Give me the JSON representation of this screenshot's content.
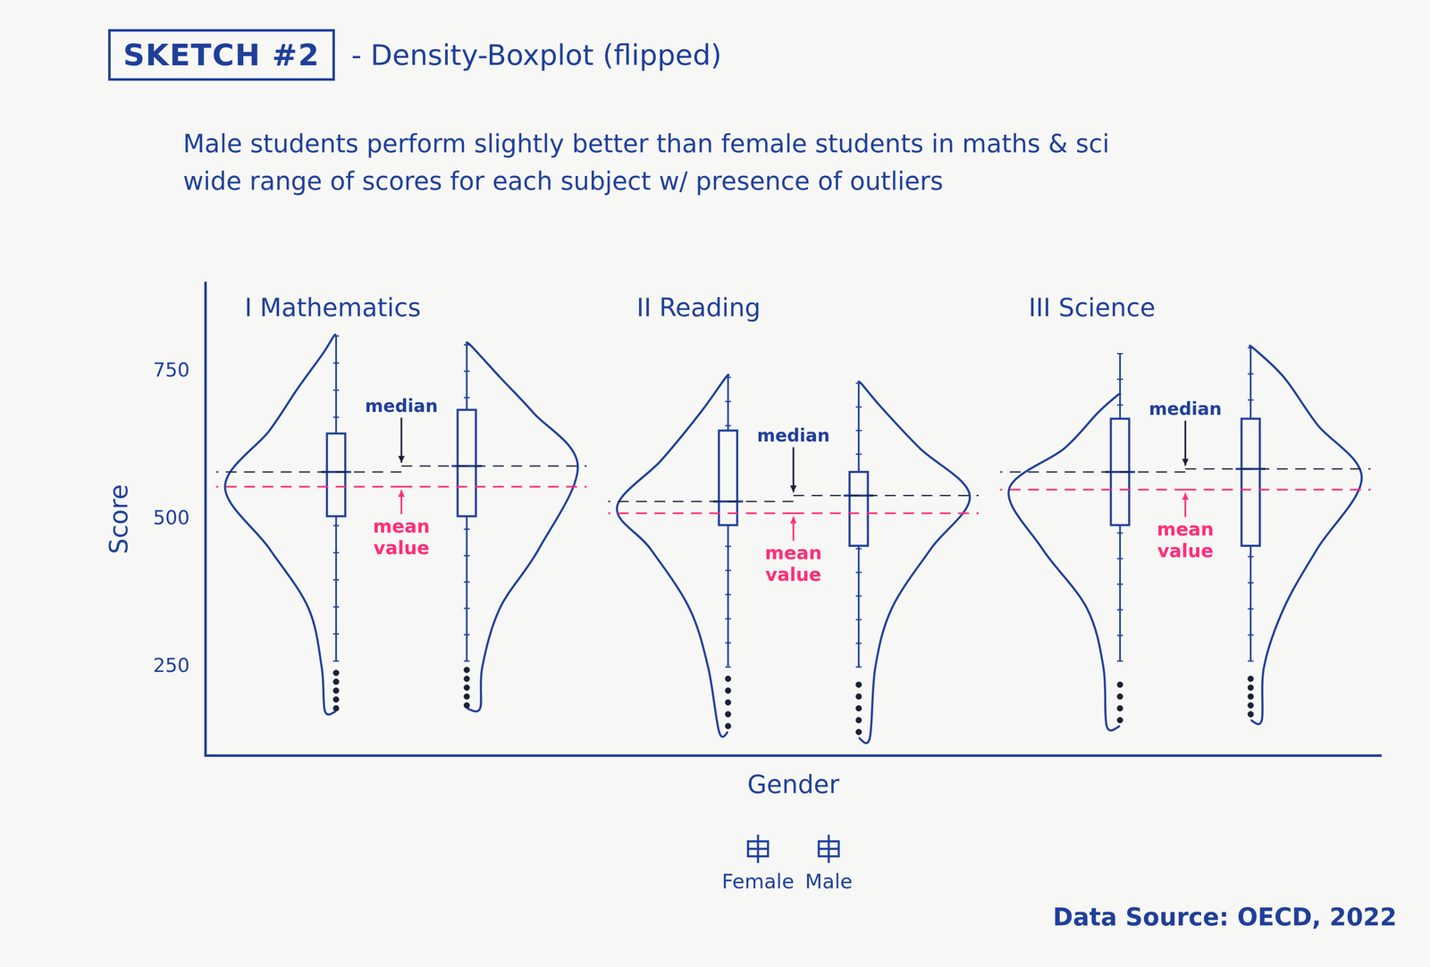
{
  "title": "SKETCH #2",
  "subtitle": "- Density-Boxplot (flipped)",
  "description": [
    "Male students perform slightly better than female students in maths & sci",
    "wide range of scores for each subject w/ presence of outliers"
  ],
  "source": "Data Source: OECD, 2022",
  "chart_data": {
    "type": "violin",
    "x_label": "Gender",
    "y_label": "Score",
    "ylim": [
      100,
      900
    ],
    "yticks": [
      250,
      500,
      750
    ],
    "tick_labels": "y",
    "grid": false,
    "legend": "bottom",
    "series": [
      {
        "name": "Female",
        "color": "#1f3f9a"
      },
      {
        "name": "Male",
        "color": "#1f3f9a"
      }
    ],
    "panels": [
      {
        "title": "I Mathematics",
        "median_label": "median",
        "mean_label": "mean value",
        "groups": [
          {
            "name": "Female",
            "min": 260,
            "q1": 505,
            "median": 580,
            "q3": 645,
            "max": 810,
            "mean": 555,
            "outliers": [
              180,
              195,
              210,
              225,
              240
            ],
            "density": {
              "scores": [
                175,
                250,
                350,
                450,
                555,
                650,
                720,
                780,
                810
              ],
              "values": [
                0.1,
                0.13,
                0.25,
                0.6,
                1.0,
                0.6,
                0.35,
                0.12,
                0.02
              ]
            }
          },
          {
            "name": "Male",
            "min": 260,
            "q1": 505,
            "median": 590,
            "q3": 685,
            "max": 795,
            "mean": 555,
            "outliers": [
              185,
              200,
              215,
              230,
              245
            ],
            "density": {
              "scores": [
                180,
                250,
                350,
                450,
                590,
                680,
                740,
                795
              ],
              "values": [
                0.12,
                0.14,
                0.3,
                0.65,
                1.0,
                0.6,
                0.3,
                0.03
              ]
            }
          }
        ]
      },
      {
        "title": "II Reading",
        "median_label": "median",
        "mean_label": "mean value",
        "groups": [
          {
            "name": "Female",
            "min": 250,
            "q1": 490,
            "median": 530,
            "q3": 650,
            "max": 740,
            "mean": 510,
            "outliers": [
              150,
              170,
              190,
              210,
              230
            ],
            "density": {
              "scores": [
                140,
                250,
                350,
                450,
                520,
                600,
                680,
                740
              ],
              "values": [
                0.08,
                0.18,
                0.35,
                0.7,
                1.0,
                0.6,
                0.25,
                0.02
              ]
            }
          },
          {
            "name": "Male",
            "min": 250,
            "q1": 455,
            "median": 540,
            "q3": 580,
            "max": 730,
            "mean": 510,
            "outliers": [
              140,
              160,
              180,
              200,
              220
            ],
            "density": {
              "scores": [
                130,
                250,
                350,
                450,
                540,
                620,
                690,
                730
              ],
              "values": [
                0.1,
                0.15,
                0.3,
                0.65,
                1.0,
                0.55,
                0.2,
                0.02
              ]
            }
          }
        ]
      },
      {
        "title": "III Science",
        "median_label": "median",
        "mean_label": "mean value",
        "groups": [
          {
            "name": "Female",
            "min": 260,
            "q1": 490,
            "median": 580,
            "q3": 670,
            "max": 780,
            "mean": 550,
            "outliers": [
              160,
              180,
              200,
              220
            ],
            "density": {
              "scores": [
                150,
                250,
                350,
                450,
                550,
                620,
                680,
                710
              ],
              "values": [
                0.12,
                0.15,
                0.3,
                0.7,
                1.0,
                0.5,
                0.2,
                0.02
              ]
            }
          },
          {
            "name": "Male",
            "min": 260,
            "q1": 455,
            "median": 585,
            "q3": 670,
            "max": 790,
            "mean": 550,
            "outliers": [
              170,
              185,
              200,
              215,
              230
            ],
            "density": {
              "scores": [
                160,
                250,
                350,
                450,
                570,
                660,
                740,
                790
              ],
              "values": [
                0.1,
                0.12,
                0.3,
                0.6,
                1.0,
                0.6,
                0.3,
                0.02
              ]
            }
          }
        ]
      }
    ]
  }
}
